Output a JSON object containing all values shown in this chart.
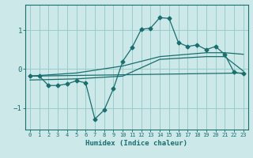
{
  "xlabel": "Humidex (Indice chaleur)",
  "bg_color": "#cce8e8",
  "grid_color": "#99cccc",
  "line_color": "#1a6e6e",
  "marker": "D",
  "marker_size": 2.5,
  "line_width": 0.9,
  "xlim": [
    -0.5,
    23.5
  ],
  "ylim": [
    -1.55,
    1.65
  ],
  "yticks": [
    -1,
    0,
    1
  ],
  "xticks": [
    0,
    1,
    2,
    3,
    4,
    5,
    6,
    7,
    8,
    9,
    10,
    11,
    12,
    13,
    14,
    15,
    16,
    17,
    18,
    19,
    20,
    21,
    22,
    23
  ],
  "series1": [
    [
      0,
      -0.18
    ],
    [
      1,
      -0.18
    ],
    [
      2,
      -0.42
    ],
    [
      3,
      -0.42
    ],
    [
      4,
      -0.38
    ],
    [
      5,
      -0.3
    ],
    [
      6,
      -0.35
    ],
    [
      7,
      -1.28
    ],
    [
      8,
      -1.05
    ],
    [
      9,
      -0.5
    ],
    [
      10,
      0.2
    ],
    [
      11,
      0.55
    ],
    [
      12,
      1.02
    ],
    [
      13,
      1.05
    ],
    [
      14,
      1.32
    ],
    [
      15,
      1.3
    ],
    [
      16,
      0.68
    ],
    [
      17,
      0.58
    ],
    [
      18,
      0.62
    ],
    [
      19,
      0.5
    ],
    [
      20,
      0.58
    ],
    [
      21,
      0.38
    ],
    [
      22,
      -0.08
    ],
    [
      23,
      -0.12
    ]
  ],
  "series2": [
    [
      0,
      -0.18
    ],
    [
      23,
      -0.1
    ]
  ],
  "series3": [
    [
      0,
      -0.18
    ],
    [
      5,
      -0.1
    ],
    [
      10,
      0.08
    ],
    [
      14,
      0.32
    ],
    [
      19,
      0.42
    ],
    [
      21,
      0.42
    ],
    [
      23,
      0.38
    ]
  ],
  "series4": [
    [
      0,
      -0.28
    ],
    [
      5,
      -0.25
    ],
    [
      10,
      -0.18
    ],
    [
      14,
      0.25
    ],
    [
      19,
      0.32
    ],
    [
      21,
      0.32
    ],
    [
      23,
      -0.05
    ]
  ]
}
